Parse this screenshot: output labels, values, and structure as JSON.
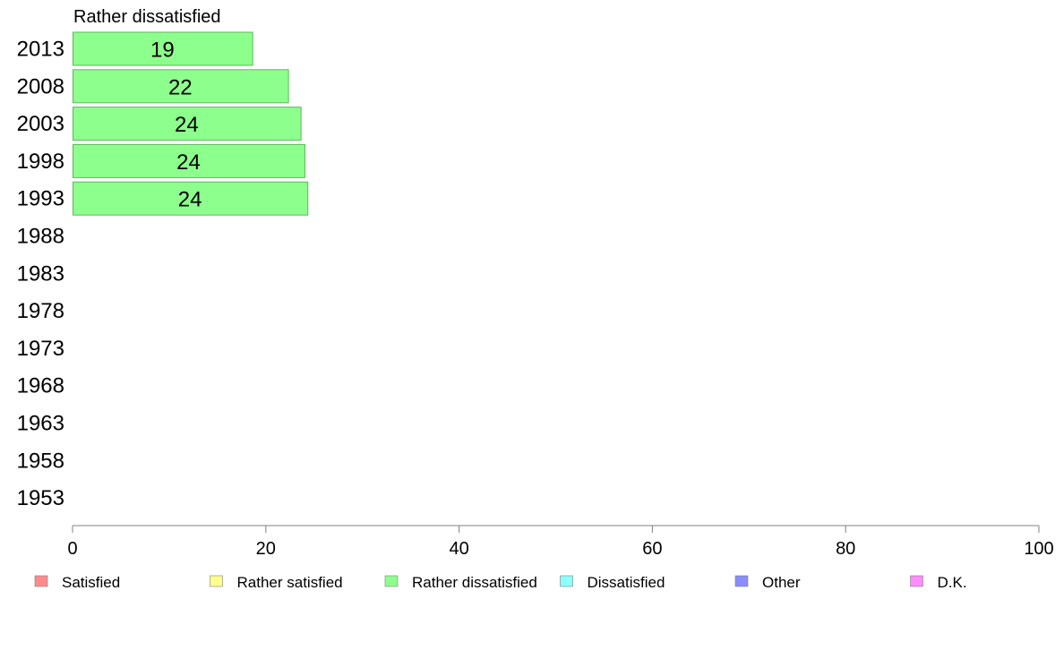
{
  "chart_data": {
    "type": "bar",
    "orientation": "horizontal",
    "title": "Rather dissatisfied",
    "categories": [
      "2013",
      "2008",
      "2003",
      "1998",
      "1993",
      "1988",
      "1983",
      "1978",
      "1973",
      "1968",
      "1963",
      "1958",
      "1953"
    ],
    "series": [
      {
        "name": "Rather dissatisfied",
        "values": [
          18.6,
          22.3,
          23.6,
          24.0,
          24.3,
          null,
          null,
          null,
          null,
          null,
          null,
          null,
          null
        ],
        "labels": [
          "19",
          "22",
          "24",
          "24",
          "24",
          "",
          "",
          "",
          "",
          "",
          "",
          "",
          ""
        ]
      }
    ],
    "xlim": [
      0,
      100
    ],
    "xticks": [
      "0",
      "20",
      "40",
      "60",
      "80",
      "100"
    ],
    "grid": false,
    "legend_position": "bottom",
    "legend": [
      {
        "label": "Satisfied",
        "color": "#ff8c8c"
      },
      {
        "label": "Rather satisfied",
        "color": "#ffff8c"
      },
      {
        "label": "Rather dissatisfied",
        "color": "#8cff8c"
      },
      {
        "label": "Dissatisfied",
        "color": "#8cffff"
      },
      {
        "label": "Other",
        "color": "#8c8cff"
      },
      {
        "label": "D.K.",
        "color": "#ff8cff"
      }
    ],
    "bar_color": "#8cff8c",
    "bar_border_color": "#5cb85c",
    "axis_color": "#808080"
  }
}
